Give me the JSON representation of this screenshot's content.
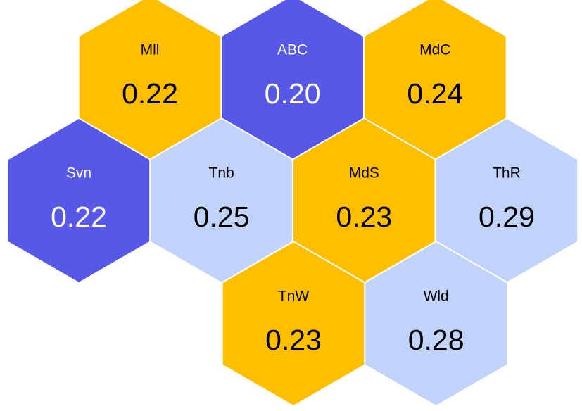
{
  "chart_data": {
    "type": "hexmap",
    "categories": [
      "Mll",
      "ABC",
      "MdC",
      "Svn",
      "Tnb",
      "MdS",
      "ThR",
      "TnW",
      "Wld"
    ],
    "values": [
      0.22,
      0.2,
      0.24,
      0.22,
      0.25,
      0.23,
      0.29,
      0.23,
      0.28
    ],
    "value_labels": [
      "0.22",
      "0.20",
      "0.24",
      "0.22",
      "0.25",
      "0.23",
      "0.29",
      "0.23",
      "0.28"
    ],
    "colors": [
      "#ffbe00",
      "#5757e8",
      "#ffbe00",
      "#5757e8",
      "#c2d3fb",
      "#ffbe00",
      "#c2d3fb",
      "#ffbe00",
      "#c2d3fb"
    ]
  }
}
